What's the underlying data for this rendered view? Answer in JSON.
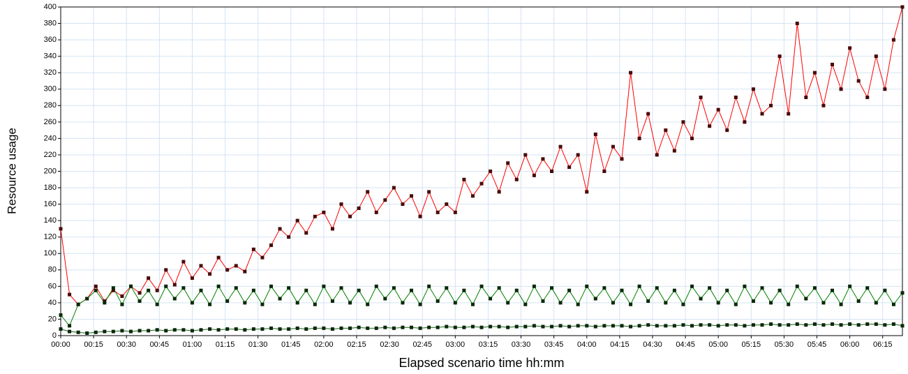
{
  "chart_data": {
    "type": "line",
    "x_label": "Elapsed scenario time hh:mm",
    "y_label": "Resource usage",
    "x": [
      0,
      4,
      8,
      12,
      16,
      20,
      24,
      28,
      32,
      36,
      40,
      44,
      48,
      52,
      56,
      60,
      64,
      68,
      72,
      76,
      80,
      84,
      88,
      92,
      96,
      100,
      104,
      108,
      112,
      116,
      120,
      124,
      128,
      132,
      136,
      140,
      144,
      148,
      152,
      156,
      160,
      164,
      168,
      172,
      176,
      180,
      184,
      188,
      192,
      196,
      200,
      204,
      208,
      212,
      216,
      220,
      224,
      228,
      232,
      236,
      240,
      244,
      248,
      252,
      256,
      260,
      264,
      268,
      272,
      276,
      280,
      284,
      288,
      292,
      296,
      300,
      304,
      308,
      312,
      316,
      320,
      324,
      328,
      332,
      336,
      340,
      344,
      348,
      352,
      356,
      360,
      364,
      368,
      372,
      376,
      380,
      384
    ],
    "series": [
      {
        "color": "#ff0000",
        "marker_color": "#4a0a0a",
        "values": [
          130,
          50,
          38,
          45,
          60,
          42,
          55,
          48,
          60,
          52,
          70,
          55,
          80,
          62,
          90,
          70,
          85,
          75,
          95,
          80,
          85,
          78,
          105,
          95,
          110,
          130,
          120,
          140,
          125,
          145,
          150,
          130,
          160,
          145,
          155,
          175,
          150,
          165,
          180,
          160,
          170,
          145,
          175,
          150,
          160,
          150,
          190,
          170,
          185,
          200,
          175,
          210,
          190,
          220,
          195,
          215,
          200,
          230,
          205,
          220,
          175,
          245,
          200,
          230,
          215,
          320,
          240,
          270,
          220,
          250,
          225,
          260,
          240,
          290,
          255,
          275,
          250,
          290,
          260,
          300,
          270,
          280,
          340,
          270,
          380,
          290,
          320,
          280,
          330,
          300,
          350,
          310,
          290,
          340,
          300,
          360,
          400
        ]
      },
      {
        "color": "#008000",
        "marker_color": "#0a2a0a",
        "values": [
          25,
          12,
          38,
          45,
          55,
          40,
          58,
          38,
          60,
          42,
          55,
          38,
          60,
          45,
          58,
          40,
          55,
          38,
          60,
          42,
          58,
          40,
          55,
          38,
          60,
          45,
          58,
          40,
          55,
          38,
          60,
          42,
          58,
          40,
          55,
          38,
          60,
          45,
          58,
          40,
          55,
          38,
          60,
          42,
          58,
          40,
          55,
          38,
          60,
          45,
          58,
          40,
          55,
          38,
          60,
          42,
          58,
          40,
          55,
          38,
          60,
          45,
          58,
          40,
          55,
          38,
          60,
          42,
          58,
          40,
          55,
          38,
          60,
          45,
          58,
          40,
          55,
          38,
          60,
          42,
          58,
          40,
          55,
          38,
          60,
          45,
          58,
          40,
          55,
          38,
          60,
          42,
          58,
          40,
          55,
          38,
          52
        ]
      },
      {
        "color": "#1f5f1f",
        "marker_color": "#0a2a0a",
        "values": [
          8,
          5,
          4,
          3,
          4,
          5,
          5,
          6,
          5,
          6,
          6,
          7,
          6,
          7,
          7,
          6,
          7,
          8,
          7,
          8,
          8,
          7,
          8,
          8,
          9,
          8,
          8,
          9,
          8,
          9,
          9,
          8,
          9,
          9,
          10,
          9,
          9,
          10,
          9,
          10,
          10,
          9,
          10,
          10,
          11,
          10,
          10,
          11,
          10,
          11,
          11,
          10,
          11,
          11,
          12,
          11,
          11,
          12,
          11,
          12,
          12,
          11,
          12,
          12,
          12,
          11,
          12,
          13,
          12,
          12,
          12,
          13,
          12,
          13,
          13,
          12,
          13,
          13,
          12,
          13,
          13,
          14,
          13,
          13,
          14,
          13,
          14,
          13,
          14,
          13,
          14,
          13,
          14,
          14,
          13,
          14,
          12
        ]
      }
    ],
    "xlim": [
      0,
      384
    ],
    "ylim": [
      0,
      400
    ],
    "xticks": [
      {
        "value": 0,
        "label": "00:00"
      },
      {
        "value": 15,
        "label": "00:15"
      },
      {
        "value": 30,
        "label": "00:30"
      },
      {
        "value": 45,
        "label": "00:45"
      },
      {
        "value": 60,
        "label": "01:00"
      },
      {
        "value": 75,
        "label": "01:15"
      },
      {
        "value": 90,
        "label": "01:30"
      },
      {
        "value": 105,
        "label": "01:45"
      },
      {
        "value": 120,
        "label": "02:00"
      },
      {
        "value": 135,
        "label": "02:15"
      },
      {
        "value": 150,
        "label": "02:30"
      },
      {
        "value": 165,
        "label": "02:45"
      },
      {
        "value": 180,
        "label": "03:00"
      },
      {
        "value": 195,
        "label": "03:15"
      },
      {
        "value": 210,
        "label": "03:30"
      },
      {
        "value": 225,
        "label": "03:45"
      },
      {
        "value": 240,
        "label": "04:00"
      },
      {
        "value": 255,
        "label": "04:15"
      },
      {
        "value": 270,
        "label": "04:30"
      },
      {
        "value": 285,
        "label": "04:45"
      },
      {
        "value": 300,
        "label": "05:00"
      },
      {
        "value": 315,
        "label": "05:15"
      },
      {
        "value": 330,
        "label": "05:30"
      },
      {
        "value": 345,
        "label": "05:45"
      },
      {
        "value": 360,
        "label": "06:00"
      },
      {
        "value": 375,
        "label": "06:15"
      }
    ],
    "yticks": [
      0,
      20,
      40,
      60,
      80,
      100,
      120,
      140,
      160,
      180,
      200,
      220,
      240,
      260,
      280,
      300,
      320,
      340,
      360,
      380,
      400
    ],
    "grid": true
  }
}
